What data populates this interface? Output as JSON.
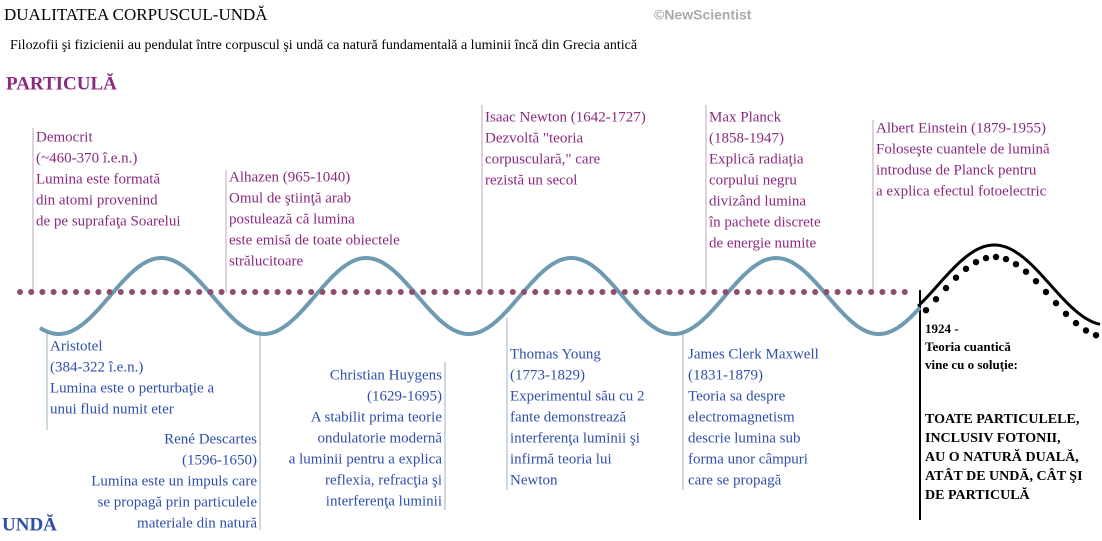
{
  "header": {
    "title": "DUALITATEA CORPUSCUL-UNDĂ",
    "credit": "©NewScientist",
    "subtitle": "Filozofii şi fizicienii au pendulat între corpuscul şi undă ca natură fundamentală a luminii încă din Grecia antică"
  },
  "labels": {
    "particle": "PARTICULĂ",
    "wave": "UNDĂ"
  },
  "particle_events": [
    {
      "lines": [
        "Democrit",
        "(~460-370 î.e.n.)",
        "Lumina este formată",
        "din atomi provenind",
        "de pe suprafaţa Soarelui"
      ]
    },
    {
      "lines": [
        "Alhazen (965-1040)",
        "Omul de ştiinţă arab",
        "postulează că lumina",
        "este emisă de toate obiectele",
        "strălucitoare"
      ]
    },
    {
      "lines": [
        "Isaac Newton (1642-1727)",
        "Dezvoltă \"teoria",
        "corpusculară,\" care",
        "rezistă un secol"
      ]
    },
    {
      "lines": [
        "Max Planck",
        "(1858-1947)",
        "Explică radiaţia",
        "corpului negru",
        "divizând lumina",
        "în pachete discrete",
        "de energie numite"
      ]
    },
    {
      "lines": [
        "Albert Einstein (1879-1955)",
        "Foloseşte cuantele de lumină",
        "introduse de Planck pentru",
        "a explica efectul fotoelectric"
      ]
    }
  ],
  "wave_events": [
    {
      "lines": [
        "Aristotel",
        "(384-322 î.e.n.)",
        "Lumina este o perturbaţie a",
        "unui fluid numit eter"
      ]
    },
    {
      "lines": [
        "René Descartes",
        "(1596-1650)",
        "Lumina este un impuls care",
        "se propagă prin particulele",
        "materiale din natură"
      ]
    },
    {
      "lines": [
        "Christian Huygens",
        "(1629-1695)",
        "A stabilit prima teorie",
        "ondulatorie modernă",
        "a luminii pentru a explica",
        "reflexia, refracţia şi",
        "interferenţa luminii"
      ]
    },
    {
      "lines": [
        "Thomas Young",
        "(1773-1829)",
        "Experimentul său cu 2",
        "fante demonstrează",
        "interferenţa luminii şi",
        "infirmă teoria lui",
        "Newton"
      ]
    },
    {
      "lines": [
        "James Clerk Maxwell",
        "(1831-1879)",
        "Teoria sa despre",
        "electromagnetism",
        "descrie lumina sub",
        "forma unor câmpuri",
        "care se propagă"
      ]
    }
  ],
  "conclusion": {
    "intro": [
      "1924 -",
      "Teoria cuantică",
      "vine cu o soluţie:"
    ],
    "statement": [
      "TOATE PARTICULELE,",
      "INCLUSIV FOTONII,",
      "AU O NATURĂ DUALĂ,",
      "ATÂT DE UNDĂ, CÂT ŞI",
      "DE PARTICULĂ"
    ]
  }
}
